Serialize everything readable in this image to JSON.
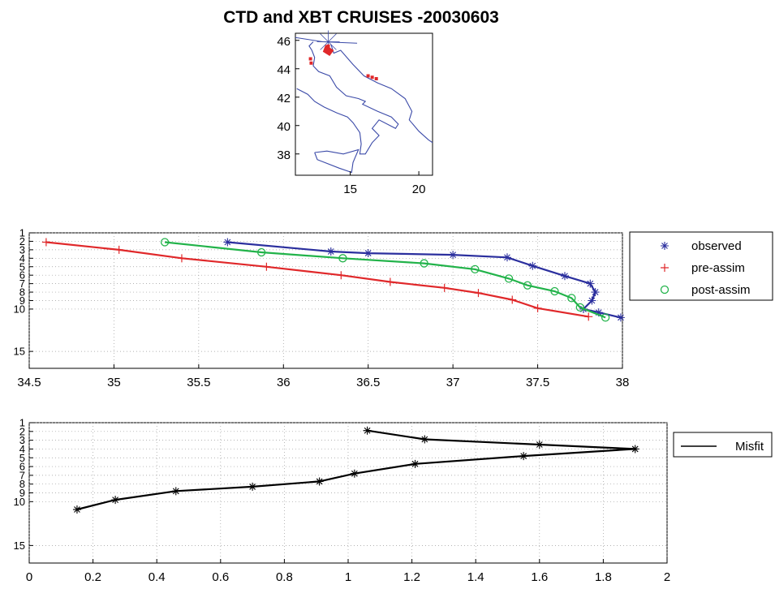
{
  "title": "CTD and XBT CRUISES -20030603",
  "colors": {
    "observed": "#2b2f9e",
    "pre": "#e0282a",
    "post": "#22b34a",
    "misfit": "#000000",
    "coast": "#3b4aa8",
    "grid": "#9a9a9a"
  },
  "chart_data": [
    {
      "type": "map",
      "xlim": [
        11,
        21
      ],
      "ylim": [
        36.5,
        46.5
      ],
      "xticks": [
        "15",
        "20"
      ],
      "yticks": [
        "38",
        "40",
        "42",
        "44",
        "46"
      ],
      "cruise_points": [
        {
          "lon": 13.4,
          "lat": 45.6
        },
        {
          "lon": 13.5,
          "lat": 45.3
        },
        {
          "lon": 12.1,
          "lat": 44.7
        },
        {
          "lon": 12.15,
          "lat": 44.4
        },
        {
          "lon": 16.3,
          "lat": 43.5
        },
        {
          "lon": 16.6,
          "lat": 43.4
        },
        {
          "lon": 16.9,
          "lat": 43.3
        }
      ]
    },
    {
      "type": "line",
      "xlim": [
        34.5,
        38
      ],
      "ylim": [
        17,
        1
      ],
      "xticks": [
        "34.5",
        "35",
        "35.5",
        "36",
        "36.5",
        "37",
        "37.5",
        "38"
      ],
      "yticks": [
        "1",
        "2",
        "3",
        "4",
        "5",
        "6",
        "7",
        "8",
        "9",
        "10",
        "15"
      ],
      "legend_position": "right",
      "series": [
        {
          "name": "observed",
          "marker": "*",
          "points": [
            [
              35.67,
              2.1
            ],
            [
              36.28,
              3.2
            ],
            [
              36.5,
              3.4
            ],
            [
              37.0,
              3.6
            ],
            [
              37.32,
              3.9
            ],
            [
              37.47,
              4.9
            ],
            [
              37.66,
              6.1
            ],
            [
              37.81,
              7.0
            ],
            [
              37.84,
              8.0
            ],
            [
              37.82,
              9.0
            ],
            [
              37.77,
              10.0
            ],
            [
              37.86,
              10.4
            ],
            [
              37.99,
              11.0
            ]
          ]
        },
        {
          "name": "pre-assim",
          "marker": "+",
          "points": [
            [
              34.6,
              2.1
            ],
            [
              35.03,
              3.0
            ],
            [
              35.4,
              4.0
            ],
            [
              35.9,
              5.0
            ],
            [
              36.34,
              6.0
            ],
            [
              36.63,
              6.8
            ],
            [
              36.95,
              7.5
            ],
            [
              37.15,
              8.1
            ],
            [
              37.35,
              8.9
            ],
            [
              37.5,
              9.9
            ],
            [
              37.8,
              10.9
            ]
          ]
        },
        {
          "name": "post-assim",
          "marker": "o",
          "points": [
            [
              35.3,
              2.1
            ],
            [
              35.87,
              3.3
            ],
            [
              36.35,
              4.0
            ],
            [
              36.83,
              4.6
            ],
            [
              37.13,
              5.3
            ],
            [
              37.33,
              6.4
            ],
            [
              37.44,
              7.2
            ],
            [
              37.6,
              7.9
            ],
            [
              37.7,
              8.7
            ],
            [
              37.75,
              9.8
            ],
            [
              37.9,
              11.0
            ]
          ]
        }
      ]
    },
    {
      "type": "line",
      "xlim": [
        0,
        2
      ],
      "ylim": [
        17,
        1
      ],
      "xticks": [
        "0",
        "0.2",
        "0.4",
        "0.6",
        "0.8",
        "1",
        "1.2",
        "1.4",
        "1.6",
        "1.8",
        "2"
      ],
      "yticks": [
        "1",
        "2",
        "3",
        "4",
        "5",
        "6",
        "7",
        "8",
        "9",
        "10",
        "15"
      ],
      "legend_position": "right",
      "series": [
        {
          "name": "Misfit",
          "marker": "*",
          "points": [
            [
              1.06,
              1.9
            ],
            [
              1.24,
              2.9
            ],
            [
              1.6,
              3.5
            ],
            [
              1.9,
              4.0
            ],
            [
              1.55,
              4.8
            ],
            [
              1.21,
              5.7
            ],
            [
              1.02,
              6.8
            ],
            [
              0.91,
              7.7
            ],
            [
              0.7,
              8.3
            ],
            [
              0.46,
              8.8
            ],
            [
              0.27,
              9.8
            ],
            [
              0.15,
              10.9
            ]
          ]
        }
      ]
    }
  ]
}
